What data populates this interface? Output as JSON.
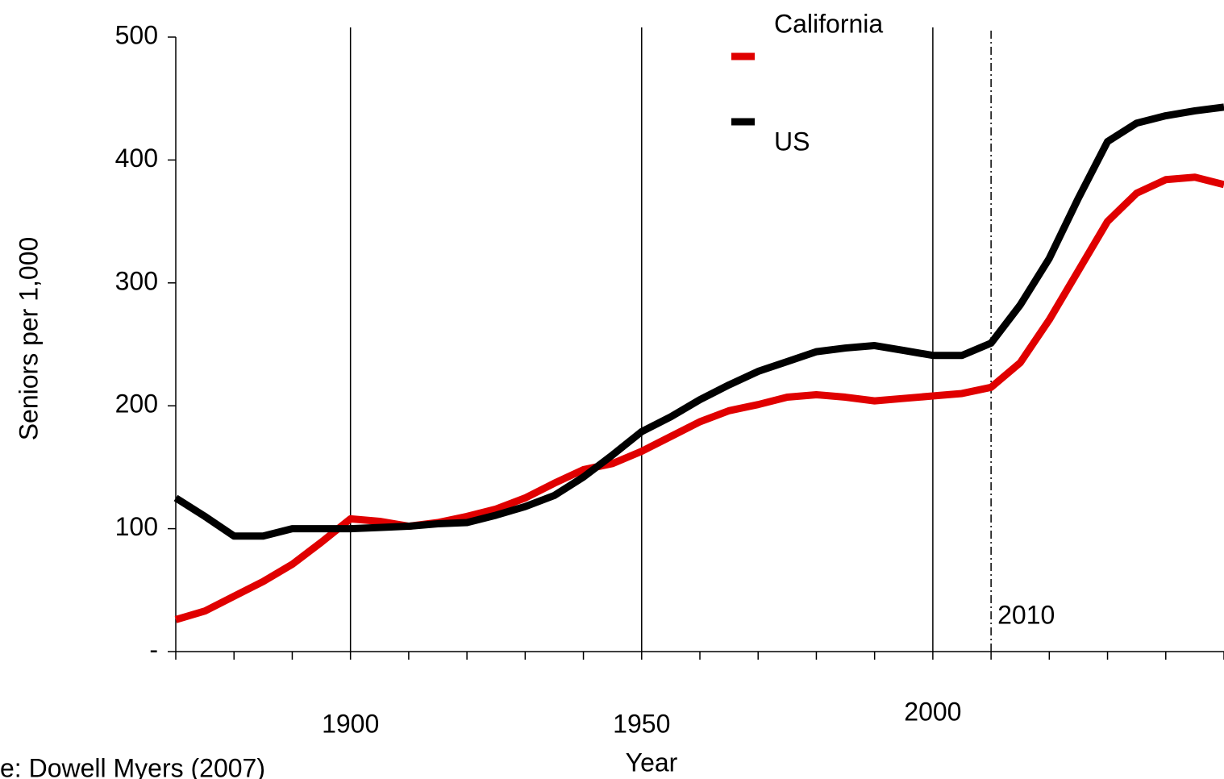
{
  "chart_data": {
    "type": "line",
    "y_label": "Seniors per 1,000",
    "x_label": "Year",
    "source": "e: Dowell Myers (2007)",
    "x": [
      1870,
      1875,
      1880,
      1885,
      1890,
      1895,
      1900,
      1905,
      1910,
      1915,
      1920,
      1925,
      1930,
      1935,
      1940,
      1945,
      1950,
      1955,
      1960,
      1965,
      1970,
      1975,
      1980,
      1985,
      1990,
      1995,
      2000,
      2005,
      2010,
      2015,
      2020,
      2025,
      2030,
      2035,
      2040,
      2045,
      2050
    ],
    "series": [
      {
        "name": "California",
        "color": "#e00000",
        "values": [
          26,
          33,
          45,
          57,
          71,
          89,
          108,
          106,
          102,
          105,
          110,
          116,
          125,
          137,
          148,
          153,
          163,
          175,
          187,
          196,
          201,
          207,
          209,
          207,
          204,
          206,
          208,
          210,
          215,
          235,
          270,
          310,
          350,
          373,
          384,
          386,
          380
        ]
      },
      {
        "name": "US",
        "color": "#000000",
        "values": [
          125,
          110,
          94,
          94,
          100,
          100,
          100,
          101,
          102,
          104,
          105,
          111,
          118,
          127,
          142,
          160,
          179,
          191,
          205,
          217,
          228,
          236,
          244,
          247,
          249,
          245,
          241,
          241,
          251,
          282,
          320,
          369,
          415,
          430,
          436,
          440,
          443
        ]
      }
    ],
    "xlim": [
      1870,
      2050
    ],
    "xticks": [
      1870,
      1880,
      1890,
      1900,
      1910,
      1920,
      1930,
      1940,
      1950,
      1960,
      1970,
      1980,
      1990,
      2000,
      2010,
      2020,
      2030,
      2040,
      2050
    ],
    "xtick_labels": [
      1900,
      1950,
      2000
    ],
    "grid": true,
    "ylim": [
      0,
      500
    ],
    "yticks": [
      {
        "value": 0,
        "label": "-"
      },
      100,
      200,
      300,
      400,
      500
    ],
    "reference_line": {
      "x": 2010,
      "label": "2010"
    }
  }
}
